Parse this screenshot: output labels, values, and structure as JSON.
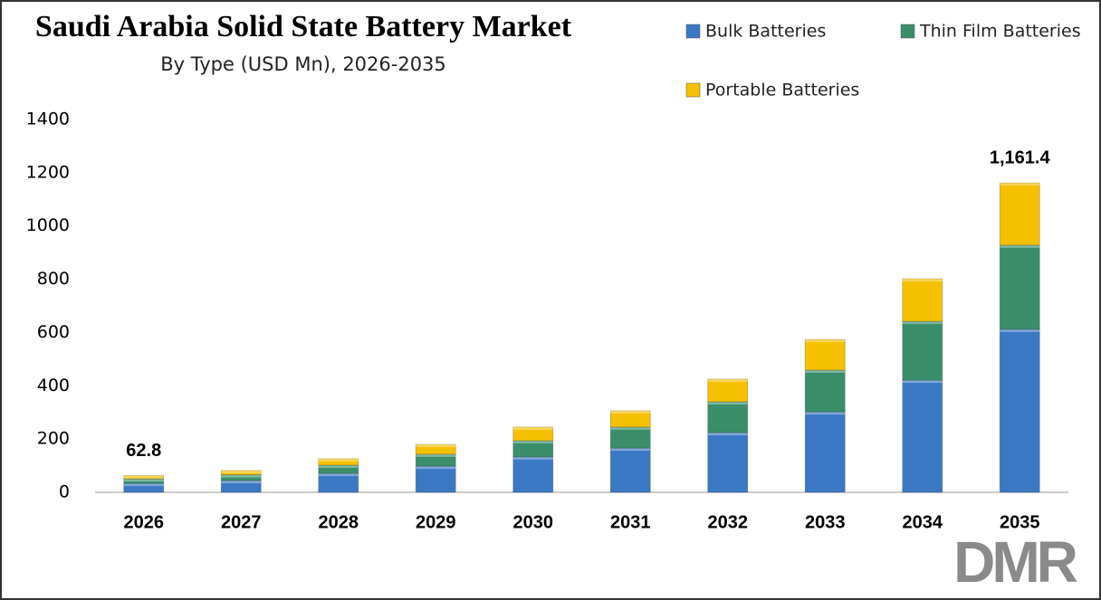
{
  "chart_data": {
    "type": "stacked_bar",
    "title": "Saudi Arabia Solid State Battery Market",
    "subtitle": "By Type (USD Mn), 2026-2035",
    "categories": [
      "2026",
      "2027",
      "2028",
      "2029",
      "2030",
      "2031",
      "2032",
      "2033",
      "2034",
      "2035"
    ],
    "series": [
      {
        "name": "Bulk Batteries",
        "color": "#3a78c4",
        "values": [
          33.4,
          44,
          71,
          98,
          133,
          166,
          224,
          302,
          421,
          612
        ]
      },
      {
        "name": "Thin Film Batteries",
        "color": "#3a8f6a",
        "values": [
          17.1,
          22,
          31,
          45,
          61,
          79,
          116,
          157,
          221,
          316
        ]
      },
      {
        "name": "Portable Batteries",
        "color": "#f5c000",
        "values": [
          12.3,
          16,
          24,
          37,
          51,
          61,
          85,
          115,
          160,
          233.4
        ]
      }
    ],
    "totals": [
      62.8,
      null,
      null,
      null,
      null,
      null,
      null,
      null,
      null,
      1161.4
    ],
    "total_labels": [
      "62.8",
      null,
      null,
      null,
      null,
      null,
      null,
      null,
      null,
      "1,161.4"
    ],
    "ylim": [
      0,
      1400
    ],
    "yticks": [
      0,
      200,
      400,
      600,
      800,
      1000,
      1200,
      1400
    ],
    "legend": "top-right",
    "grid": false
  },
  "logo": "DMR"
}
